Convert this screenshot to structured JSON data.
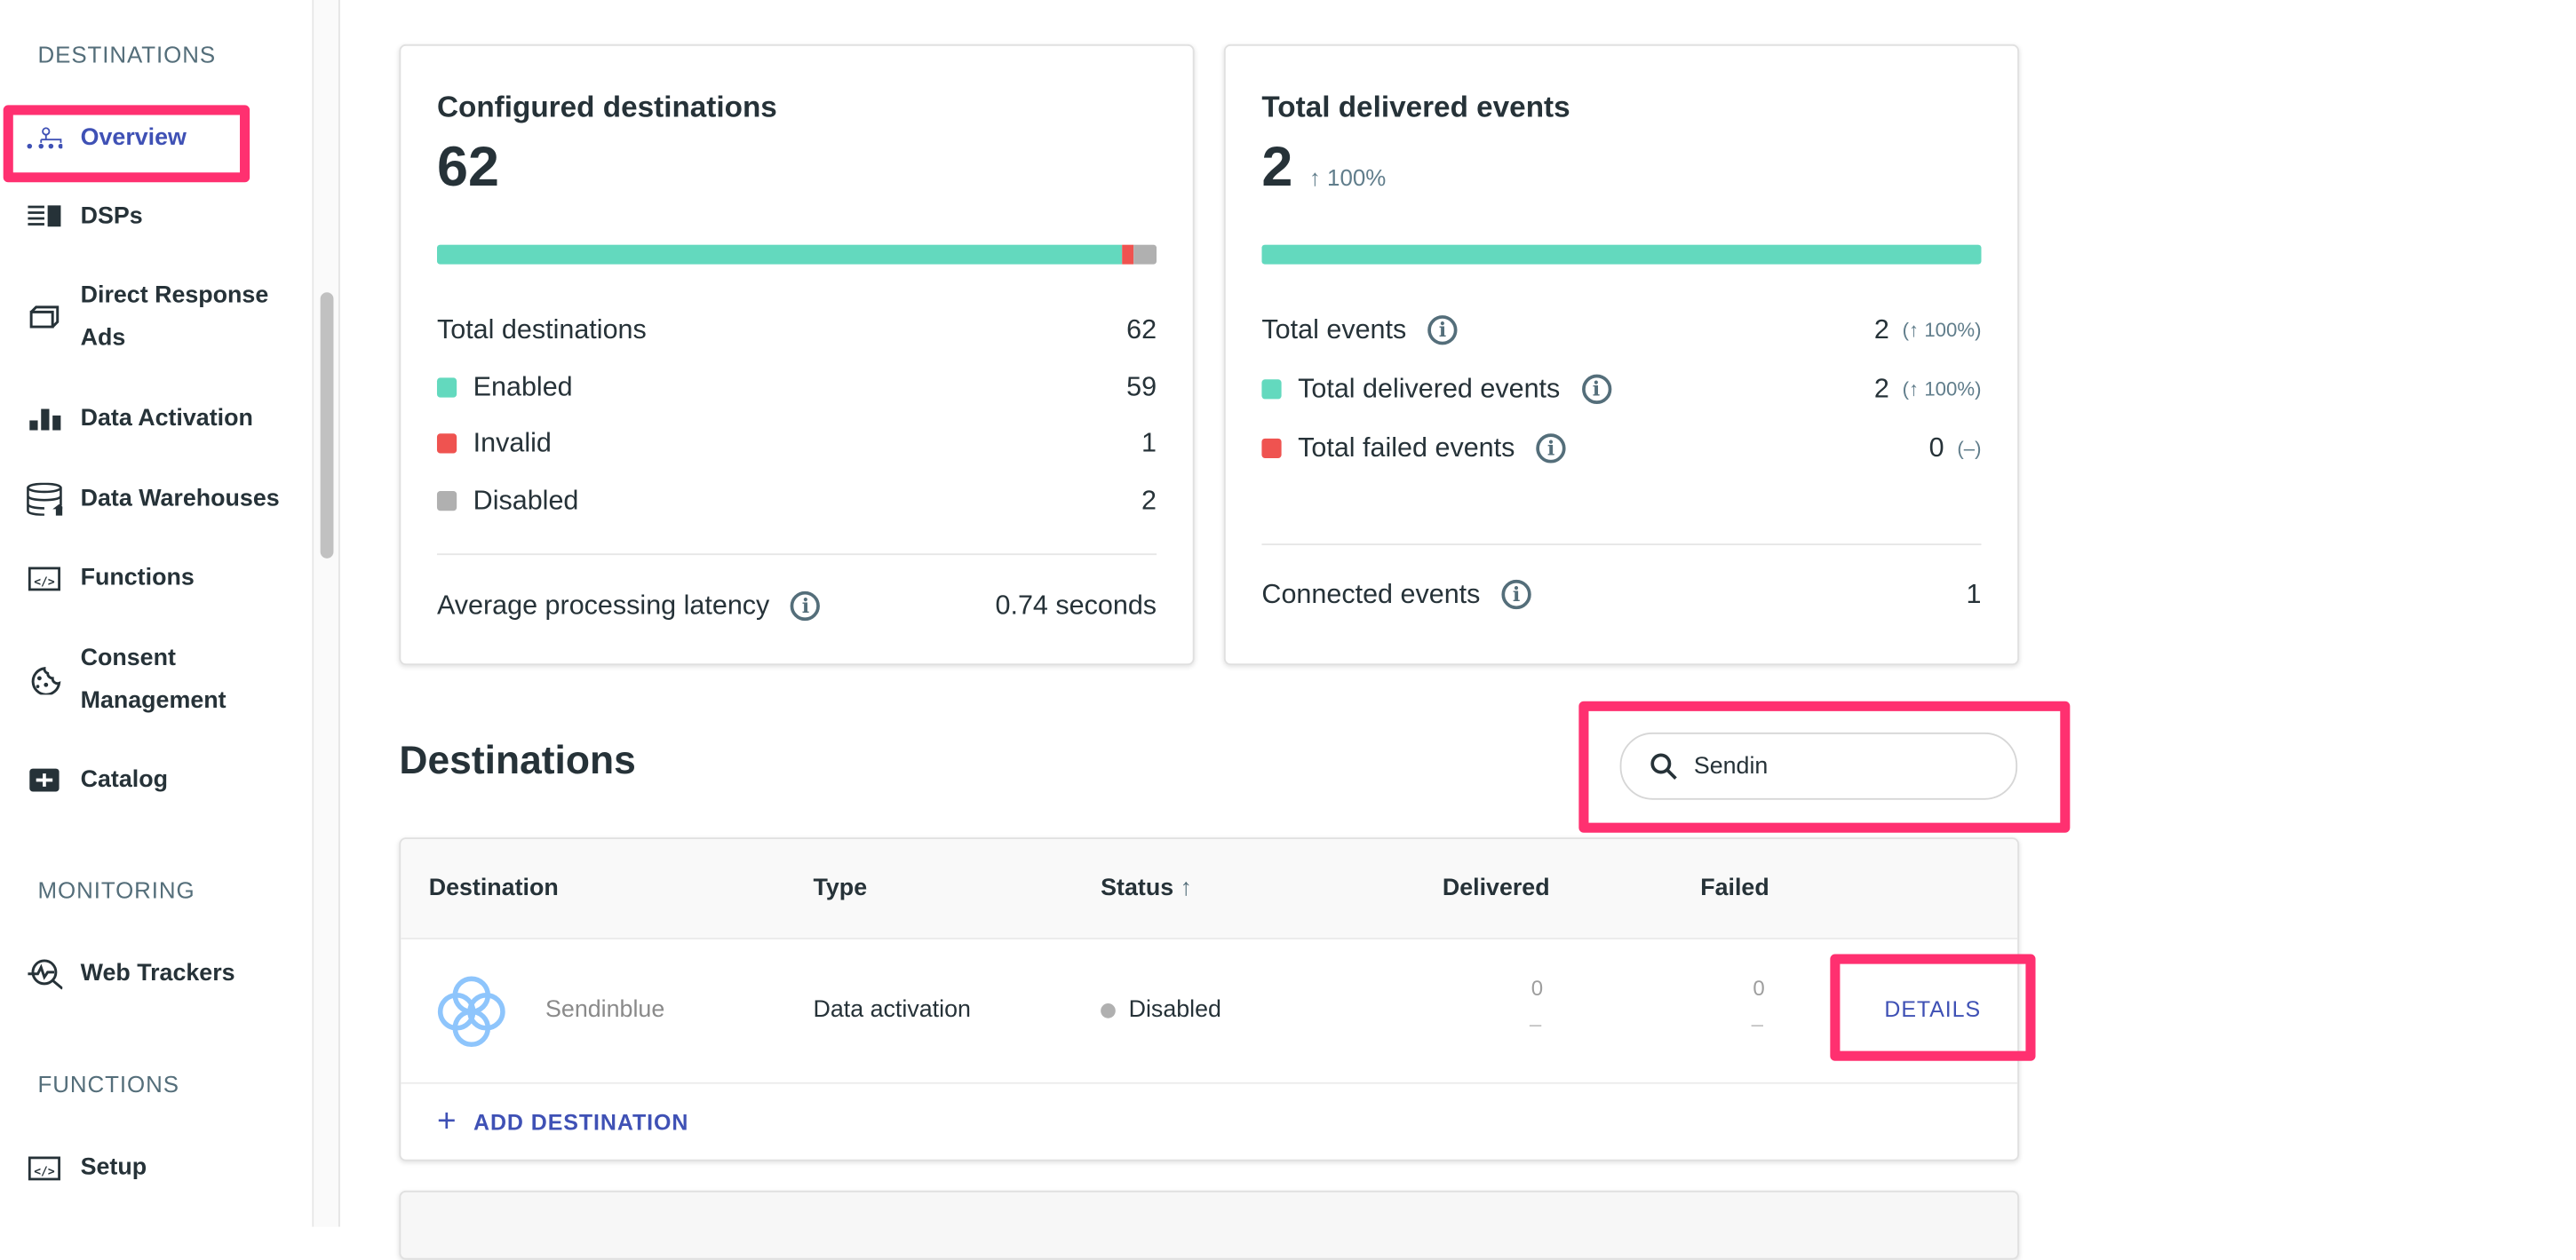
{
  "sidebar": {
    "sections": [
      "DESTINATIONS",
      "MONITORING",
      "FUNCTIONS"
    ],
    "items": [
      {
        "label": "Overview",
        "icon": "hierarchy-icon",
        "active": true
      },
      {
        "label": "DSPs",
        "icon": "dsp-icon"
      },
      {
        "label": "Direct Response Ads",
        "icon": "box-icon"
      },
      {
        "label": "Data Activation",
        "icon": "bar-chart-icon"
      },
      {
        "label": "Data Warehouses",
        "icon": "database-icon"
      },
      {
        "label": "Functions",
        "icon": "code-icon"
      },
      {
        "label": "Consent Management",
        "icon": "cookie-icon"
      },
      {
        "label": "Catalog",
        "icon": "plus-box-icon"
      },
      {
        "label": "Web Trackers",
        "icon": "tracker-search-icon"
      },
      {
        "label": "Setup",
        "icon": "code-icon"
      }
    ]
  },
  "configured": {
    "title": "Configured destinations",
    "value": "62",
    "bar": {
      "enabled": 59,
      "invalid": 1,
      "disabled": 2
    },
    "rows": [
      {
        "label": "Total destinations",
        "value": "62"
      },
      {
        "label": "Enabled",
        "value": "59",
        "color": "#63d9be"
      },
      {
        "label": "Invalid",
        "value": "1",
        "color": "#ef5350"
      },
      {
        "label": "Disabled",
        "value": "2",
        "color": "#b0b0b0"
      }
    ],
    "latency_label": "Average processing latency",
    "latency_value": "0.74 seconds"
  },
  "delivered": {
    "title": "Total delivered events",
    "value": "2",
    "change": "↑ 100%",
    "bar_fraction": 1.0,
    "rows": [
      {
        "label": "Total events",
        "value": "2",
        "change": "(↑ 100%)"
      },
      {
        "label": "Total delivered events",
        "value": "2",
        "change": "(↑ 100%)",
        "color": "#63d9be"
      },
      {
        "label": "Total failed events",
        "value": "0",
        "change": "(–)",
        "color": "#ef5350"
      }
    ],
    "connected_label": "Connected events",
    "connected_value": "1"
  },
  "destinations": {
    "heading": "Destinations",
    "search_value": "Sendin",
    "columns": [
      "Destination",
      "Type",
      "Status",
      "Delivered",
      "Failed"
    ],
    "rows": [
      {
        "name": "Sendinblue",
        "type": "Data activation",
        "status": "Disabled",
        "delivered": "0",
        "delivered_sub": "–",
        "failed": "0",
        "failed_sub": "–",
        "action": "DETAILS"
      }
    ],
    "add_label": "ADD DESTINATION"
  },
  "colors": {
    "accent": "#3f51b5",
    "highlight": "#ff3070",
    "enabled": "#63d9be",
    "invalid": "#ef5350",
    "disabled": "#b0b0b0"
  }
}
